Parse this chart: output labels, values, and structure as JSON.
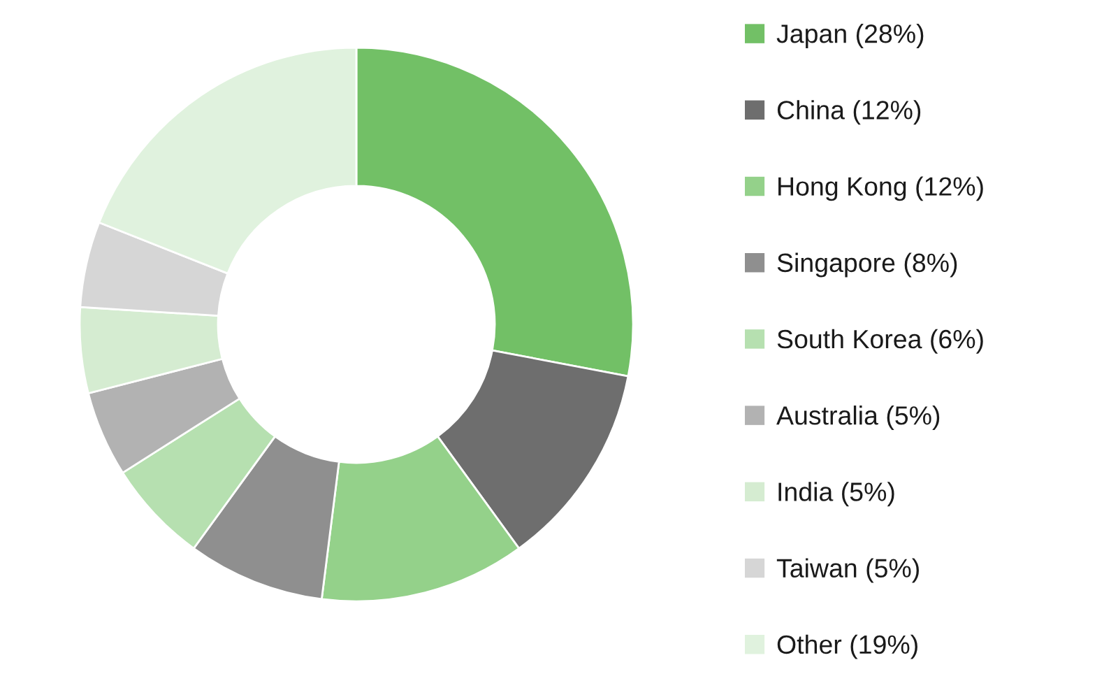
{
  "chart_data": {
    "type": "donut",
    "categories": [
      "Japan (28%)",
      "China (12%)",
      "Hong Kong (12%)",
      "Singapore (8%)",
      "South Korea (6%)",
      "Australia (5%)",
      "India (5%)",
      "Taiwan (5%)",
      "Other (19%)"
    ],
    "values": [
      28,
      12,
      12,
      8,
      6,
      5,
      5,
      5,
      19
    ],
    "colors": [
      "#72c066",
      "#6e6e6e",
      "#94d18a",
      "#8f8f8f",
      "#b6e0b0",
      "#b2b2b2",
      "#d5ecd1",
      "#d6d6d6",
      "#e0f2de"
    ],
    "legend": "right"
  }
}
